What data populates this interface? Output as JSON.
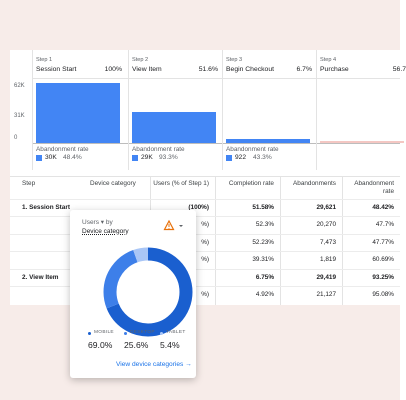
{
  "funnel": {
    "axis_labels": [
      "62K",
      "31K",
      "0"
    ],
    "steps": [
      {
        "step": "Step 1",
        "name": "Session Start",
        "percent": {
          "value": 100,
          "label": "100%"
        },
        "abandonment_label": "Abandonment rate",
        "abandonments": "30K",
        "abandonment_rate": "48.4%"
      },
      {
        "step": "Step 2",
        "name": "View Item",
        "percent": {
          "value": 51.6,
          "label": "51.6%"
        },
        "abandonment_label": "Abandonment rate",
        "abandonments": "29K",
        "abandonment_rate": "93.3%"
      },
      {
        "step": "Step 3",
        "name": "Begin Checkout",
        "percent": {
          "value": 6.7,
          "label": "6.7%"
        },
        "abandonment_label": "Abandonment rate",
        "abandonments": "922",
        "abandonment_rate": "43.3%"
      },
      {
        "step": "Step 4",
        "name": "Purchase",
        "percent": 56.7
      }
    ],
    "bar_color": "#4285f4"
  },
  "table": {
    "columns": [
      "Step",
      "Device category",
      "Users (% of Step 1)",
      "Completion rate",
      "Abandonments",
      "Abandonment rate"
    ],
    "rows": [
      {
        "step": "1. Session Start",
        "users": "(100%)",
        "completion": "51.58%",
        "abandonments": "29,621",
        "rate": "48.42%",
        "bold": true
      },
      {
        "users": "%)",
        "completion": "52.3%",
        "abandonments": "20,270",
        "rate": "47.7%",
        "bold": false
      },
      {
        "users": "%)",
        "completion": "52.23%",
        "abandonments": "7,473",
        "rate": "47.77%",
        "bold": false
      },
      {
        "users": "%)",
        "completion": "39.31%",
        "abandonments": "1,819",
        "rate": "60.69%",
        "bold": false
      },
      {
        "step": "2. View Item",
        "completion": "6.75%",
        "abandonments": "29,419",
        "rate": "93.25%",
        "bold": true
      },
      {
        "users": "%)",
        "completion": "4.92%",
        "abandonments": "21,127",
        "rate": "95.08%",
        "bold": false
      }
    ]
  },
  "popup": {
    "metric": "Users",
    "by": "by",
    "dimension": "Device category",
    "segments": [
      {
        "name": "MOBILE",
        "value": {
          "value": 69.0,
          "label": "69.0%"
        },
        "color": "#1a5fcf"
      },
      {
        "name": "DESKTOP",
        "value": {
          "value": 25.6,
          "label": "25.6%"
        },
        "color": "#3d7fe9"
      },
      {
        "name": "TABLET",
        "value": {
          "value": 5.4,
          "label": "5.4%"
        },
        "color": "#a9c6f6"
      }
    ],
    "link": "View device categories"
  }
}
